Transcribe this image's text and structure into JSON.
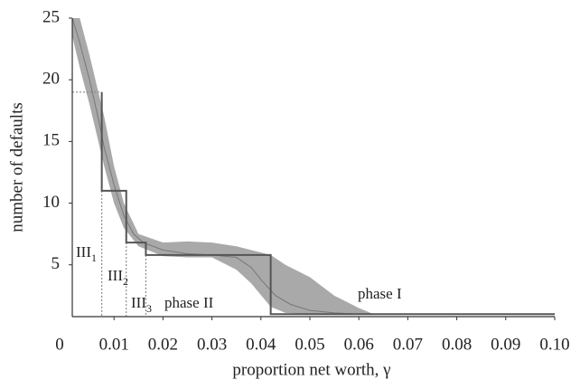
{
  "chart_data": {
    "type": "line",
    "xlabel": "proportion net worth, γ",
    "ylabel": "number of defaults",
    "xlim": [
      0,
      0.1
    ],
    "ylim": [
      0.8,
      25
    ],
    "xticks": [
      0,
      0.01,
      0.02,
      0.03,
      0.04,
      0.05,
      0.06,
      0.07,
      0.08,
      0.09,
      {
        "value": 0.1,
        "label": "0.10"
      }
    ],
    "yticks": [
      5,
      10,
      15,
      20,
      25
    ],
    "grid": false,
    "band": {
      "color": "#a9a9a9",
      "x": [
        0.0015,
        0.003,
        0.005,
        0.008,
        0.01,
        0.012,
        0.015,
        0.02,
        0.025,
        0.03,
        0.035,
        0.038,
        0.042,
        0.045,
        0.05,
        0.055,
        0.06,
        0.063,
        0.1
      ],
      "upper": [
        25,
        25,
        22,
        17,
        13,
        10,
        7.5,
        6.8,
        6.9,
        6.8,
        6.5,
        6.2,
        5.8,
        5,
        4,
        2.5,
        1.5,
        1.0,
        1.0
      ],
      "lower": [
        23.5,
        21,
        18,
        13,
        10,
        8,
        6.5,
        5.7,
        5.6,
        5.6,
        4.6,
        3.5,
        1.6,
        1.1,
        1,
        1,
        1,
        1,
        1
      ]
    },
    "series": [
      {
        "color": "#777777",
        "x": [
          0.0015,
          0.003,
          0.005,
          0.007,
          0.008,
          0.01,
          0.012,
          0.014,
          0.016,
          0.02,
          0.025,
          0.03,
          0.035,
          0.038,
          0.04,
          0.043,
          0.046,
          0.05,
          0.055,
          0.06,
          0.1
        ],
        "values": [
          25,
          23,
          20,
          16.5,
          14.5,
          11.5,
          9,
          7.5,
          6.8,
          6.2,
          5.9,
          5.8,
          5.6,
          4.8,
          3.8,
          2.5,
          1.8,
          1.3,
          1.1,
          1.0,
          1.0
        ]
      },
      {
        "color": "#555555",
        "x": [
          0.0075,
          0.0075,
          0.0125,
          0.0125,
          0.0165,
          0.0165,
          0.042,
          0.042,
          0.1
        ],
        "values": [
          19,
          11,
          11,
          6.8,
          6.8,
          5.8,
          5.8,
          1,
          1
        ]
      }
    ],
    "annotations": [
      {
        "text": "III",
        "subscript": "1"
      },
      {
        "text": "III",
        "subscript": "2"
      },
      {
        "text": "III",
        "subscript": "3"
      },
      {
        "text": "phase II"
      },
      {
        "text": "phase I"
      }
    ]
  }
}
